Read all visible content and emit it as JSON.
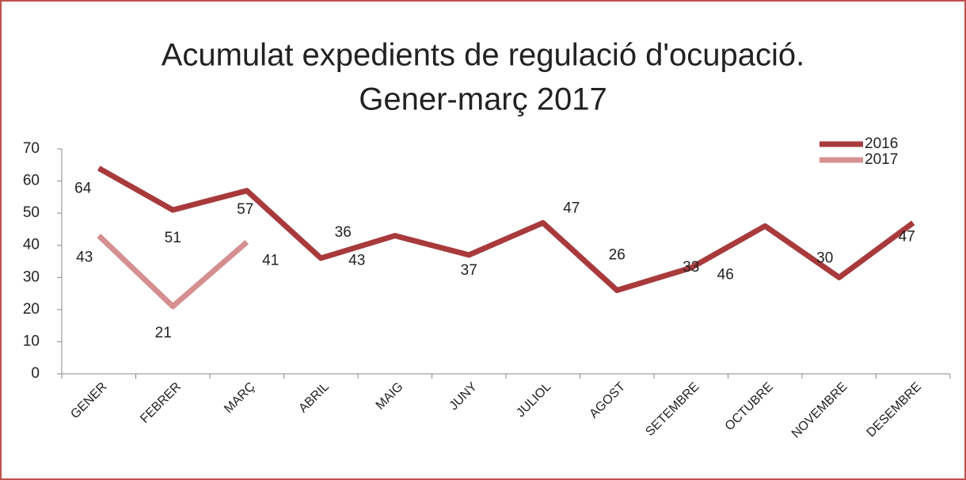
{
  "chart_data": {
    "type": "line",
    "title": [
      "Acumulat expedients de regulació d'ocupació.",
      "Gener-març 2017"
    ],
    "categories": [
      "GENER",
      "FEBRER",
      "MARÇ",
      "ABRIL",
      "MAIG",
      "JUNY",
      "JULIOL",
      "AGOST",
      "SETEMBRE",
      "OCTUBRE",
      "NOVEMBRE",
      "DESEMBRE"
    ],
    "series": [
      {
        "name": "2016",
        "color": "#a83a3c",
        "values": [
          64,
          51,
          57,
          36,
          43,
          37,
          47,
          26,
          33,
          46,
          30,
          47
        ]
      },
      {
        "name": "2017",
        "color": "#d58f90",
        "values": [
          43,
          21,
          41,
          null,
          null,
          null,
          null,
          null,
          null,
          null,
          null,
          null
        ]
      }
    ],
    "ylim": [
      0,
      70
    ],
    "yticks": [
      0,
      10,
      20,
      30,
      40,
      50,
      60,
      70
    ],
    "grid": false,
    "legend": "top-right"
  }
}
